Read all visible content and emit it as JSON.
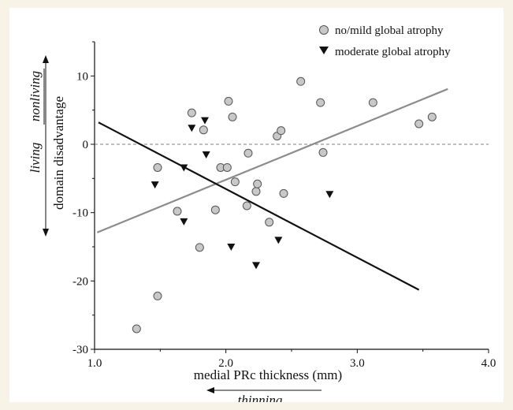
{
  "chart_data": {
    "type": "scatter",
    "title": "",
    "xlabel": "medial PRc thickness (mm)",
    "ylabel": "domain disadvantage",
    "xlim": [
      1.0,
      4.0
    ],
    "ylim": [
      -30,
      15
    ],
    "x_ticks": [
      {
        "value": 1.0,
        "label": "1.0"
      },
      {
        "value": 2.0,
        "label": "2.0"
      },
      {
        "value": 3.0,
        "label": "3.0"
      },
      {
        "value": 4.0,
        "label": "4.0"
      }
    ],
    "y_ticks": [
      {
        "value": 10,
        "label": "10"
      },
      {
        "value": 0,
        "label": "0"
      },
      {
        "value": -10,
        "label": "-10"
      },
      {
        "value": -20,
        "label": "-20"
      },
      {
        "value": -30,
        "label": "-30"
      }
    ],
    "grid": false,
    "legend_position": "top-right",
    "annotations": {
      "y_upper": "nonliving",
      "y_lower": "living",
      "x_direction": "thinning"
    },
    "reference_line": {
      "y": 0,
      "style": "dashed"
    },
    "series": [
      {
        "name": "no/mild global atrophy",
        "marker": "circle",
        "color": "#c8c8c8",
        "points": [
          [
            1.32,
            -27
          ],
          [
            1.48,
            -22.2
          ],
          [
            1.48,
            -3.4
          ],
          [
            1.63,
            -9.8
          ],
          [
            1.74,
            4.6
          ],
          [
            1.8,
            -15.1
          ],
          [
            1.83,
            2.1
          ],
          [
            1.92,
            -9.6
          ],
          [
            1.96,
            -3.4
          ],
          [
            2.01,
            -3.4
          ],
          [
            2.02,
            6.3
          ],
          [
            2.05,
            4.0
          ],
          [
            2.07,
            -5.5
          ],
          [
            2.16,
            -9.0
          ],
          [
            2.17,
            -1.3
          ],
          [
            2.23,
            -6.9
          ],
          [
            2.24,
            -5.8
          ],
          [
            2.33,
            -11.4
          ],
          [
            2.39,
            1.2
          ],
          [
            2.42,
            2.0
          ],
          [
            2.44,
            -7.2
          ],
          [
            2.57,
            9.2
          ],
          [
            2.72,
            6.1
          ],
          [
            2.74,
            -1.2
          ],
          [
            3.12,
            6.1
          ],
          [
            3.47,
            3.0
          ],
          [
            3.57,
            4.0
          ]
        ]
      },
      {
        "name": "moderate global atrophy",
        "marker": "triangle-down",
        "color": "#111111",
        "points": [
          [
            1.46,
            -5.9
          ],
          [
            1.68,
            -3.4
          ],
          [
            1.68,
            -11.3
          ],
          [
            1.74,
            2.4
          ],
          [
            1.84,
            3.5
          ],
          [
            1.85,
            -1.5
          ],
          [
            2.04,
            -15.0
          ],
          [
            2.23,
            -17.7
          ],
          [
            2.4,
            -14.0
          ],
          [
            2.79,
            -7.3
          ]
        ]
      }
    ],
    "fit_lines": [
      {
        "series": "no/mild global atrophy",
        "color": "#8c8c8c",
        "from": [
          1.02,
          -12.9
        ],
        "to": [
          3.69,
          8.1
        ]
      },
      {
        "series": "moderate global atrophy",
        "color": "#111111",
        "from": [
          1.03,
          3.2
        ],
        "to": [
          3.47,
          -21.3
        ]
      }
    ]
  }
}
